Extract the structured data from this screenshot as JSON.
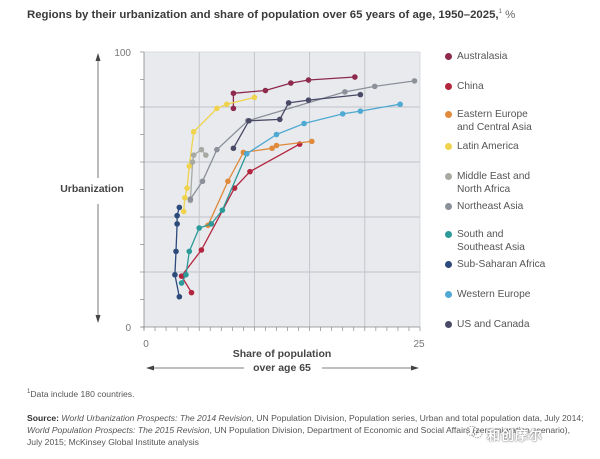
{
  "title": "Regions by their urbanization and share of population over 65 years of age, 1950–2025,",
  "title_footnote_mark": "1",
  "title_unit": "%",
  "chart_data": {
    "type": "scatter",
    "mode": "connected-lines",
    "title": "Regions by their urbanization and share of population over 65 years of age, 1950–2025",
    "xlabel": "Share of population over age 65",
    "xlabel_line1": "Share of population",
    "xlabel_line2": "over age 65",
    "ylabel": "Urbanization",
    "xlim": [
      0,
      25
    ],
    "ylim": [
      0,
      100
    ],
    "x_tick_labels": [
      "0",
      "25"
    ],
    "y_tick_labels": [
      "0",
      "100"
    ],
    "x_gridlines": [
      5,
      10,
      15,
      20
    ],
    "y_gridlines": [
      20,
      40,
      60,
      80
    ],
    "x_minor_step": 1,
    "y_minor_step": 10,
    "grid": true,
    "legend_position": "right",
    "series": [
      {
        "name": "Australasia",
        "color": "#8e2a4c",
        "points": [
          [
            8.1,
            79.5
          ],
          [
            8.1,
            85
          ],
          [
            11.0,
            86
          ],
          [
            13.3,
            88.7
          ],
          [
            14.9,
            89.8
          ],
          [
            19.1,
            90.9
          ]
        ]
      },
      {
        "name": "China",
        "color": "#b3243d",
        "points": [
          [
            4.3,
            12.5
          ],
          [
            3.4,
            18.5
          ],
          [
            5.2,
            28
          ],
          [
            8.2,
            50.5
          ],
          [
            9.6,
            56.5
          ],
          [
            14.1,
            66.5
          ]
        ]
      },
      {
        "name": "Eastern Europe and Central Asia",
        "color": "#e08a3c",
        "points": [
          [
            5.8,
            37
          ],
          [
            7.6,
            53
          ],
          [
            9.0,
            63.5
          ],
          [
            11.6,
            65
          ],
          [
            12.0,
            66
          ],
          [
            15.2,
            67.5
          ]
        ]
      },
      {
        "name": "Latin America",
        "color": "#f0d34c",
        "points": [
          [
            3.6,
            42
          ],
          [
            3.7,
            47
          ],
          [
            3.9,
            50.5
          ],
          [
            4.1,
            58.5
          ],
          [
            4.5,
            71
          ],
          [
            6.6,
            79.5
          ],
          [
            7.5,
            81
          ],
          [
            10.0,
            83.5
          ]
        ]
      },
      {
        "name": "Middle East and North Africa",
        "color": "#a7aaa3",
        "points": [
          [
            4.2,
            46
          ],
          [
            4.4,
            60
          ],
          [
            4.5,
            62.5
          ],
          [
            5.2,
            64.5
          ],
          [
            5.6,
            62.5
          ]
        ]
      },
      {
        "name": "Northeast Asia",
        "color": "#8c9099",
        "points": [
          [
            4.2,
            46.5
          ],
          [
            5.3,
            53
          ],
          [
            6.6,
            64.5
          ],
          [
            9.4,
            75
          ],
          [
            18.2,
            85.5
          ],
          [
            20.9,
            87.5
          ],
          [
            24.5,
            89.5
          ]
        ]
      },
      {
        "name": "South and Southeast Asia",
        "color": "#2b9a98",
        "points": [
          [
            3.4,
            16
          ],
          [
            3.8,
            19
          ],
          [
            4.1,
            27.5
          ],
          [
            5.0,
            36
          ],
          [
            6.1,
            37.5
          ],
          [
            7.1,
            42.5
          ],
          [
            9.3,
            63
          ]
        ]
      },
      {
        "name": "Sub-Saharan Africa",
        "color": "#2c4a7a",
        "points": [
          [
            3.2,
            11
          ],
          [
            2.8,
            19
          ],
          [
            2.9,
            27.5
          ],
          [
            3.0,
            37.5
          ],
          [
            3.0,
            40.5
          ],
          [
            3.2,
            43.5
          ]
        ]
      },
      {
        "name": "Western Europe",
        "color": "#4fa9d2",
        "points": [
          [
            9.3,
            63
          ],
          [
            12.0,
            70
          ],
          [
            14.5,
            74
          ],
          [
            18.0,
            77.5
          ],
          [
            19.6,
            78.5
          ],
          [
            23.2,
            81
          ]
        ]
      },
      {
        "name": "US and Canada",
        "color": "#4a4a66",
        "points": [
          [
            8.1,
            65
          ],
          [
            9.5,
            75
          ],
          [
            12.3,
            75.5
          ],
          [
            13.1,
            81.5
          ],
          [
            14.9,
            82.5
          ],
          [
            19.6,
            84.5
          ]
        ]
      }
    ]
  },
  "legend": [
    {
      "label": "Australasia",
      "color": "#8e2a4c"
    },
    {
      "label": "China",
      "color": "#b3243d"
    },
    {
      "label": "Eastern Europe\nand Central Asia",
      "color": "#e08a3c"
    },
    {
      "label": "Latin America",
      "color": "#f0d34c"
    },
    {
      "label": "Middle East and\nNorth Africa",
      "color": "#a7aaa3"
    },
    {
      "label": "Northeast Asia",
      "color": "#8c9099"
    },
    {
      "label": "South and\nSoutheast Asia",
      "color": "#2b9a98"
    },
    {
      "label": "Sub-Saharan Africa",
      "color": "#2c4a7a"
    },
    {
      "label": "Western Europe",
      "color": "#4fa9d2"
    },
    {
      "label": "US and Canada",
      "color": "#4a4a66"
    }
  ],
  "footnote": {
    "mark": "1",
    "text": "Data include 180 countries."
  },
  "source": {
    "label": "Source:",
    "parts": [
      {
        "text": " ",
        "italic": false
      },
      {
        "text": "World Urbanization Prospects: The 2014 Revision",
        "italic": true
      },
      {
        "text": ", UN Population Division, Population series, Urban and total population data, July 2014; ",
        "italic": false
      },
      {
        "text": "World Population Prospects: The 2015 Revision",
        "italic": true
      },
      {
        "text": ", UN Population Division, ",
        "italic": false
      },
      {
        "text": "Department of Economic and Social Affairs (zero migration scenario), July 2015; McKinsey Global Institute analysis",
        "italic": false
      }
    ]
  },
  "watermark": "和创摩尔",
  "colors": {
    "plot_background": "#e8eaee",
    "gridline": "#bfc3c8",
    "axis": "#888888"
  }
}
